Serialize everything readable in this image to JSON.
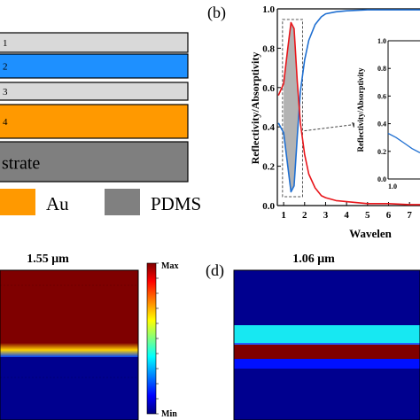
{
  "panel_a": {
    "layers": [
      {
        "label": "1",
        "color": "#d9d9d9"
      },
      {
        "label": "2",
        "color": "#1e90ff"
      },
      {
        "label": "3",
        "color": "#d9d9d9"
      },
      {
        "label": "4",
        "color": "#ff9900"
      },
      {
        "label": "strate",
        "color": "#7f7f7f"
      }
    ],
    "legend": [
      {
        "label": "Au",
        "color": "#ff9900"
      },
      {
        "label": "PDMS",
        "color": "#808080"
      }
    ]
  },
  "panel_b": {
    "letter": "(b)",
    "ylabel": "Reflectivity/Absorptivity",
    "xlabel": "Wavelen",
    "inset_ylabel": "Reflectivity/Absorptivity"
  },
  "panel_c": {
    "title": "1.55 μm",
    "colorbar_max": "Max",
    "colorbar_min": "Min"
  },
  "panel_d": {
    "letter": "(d)",
    "title": "1.06 μm"
  },
  "chart_data": {
    "type": "line",
    "xlabel": "Wavelen",
    "ylabel": "Reflectivity/Absorptivity",
    "xlim": [
      0.7,
      7.5
    ],
    "ylim": [
      0,
      1.0
    ],
    "xticks": [
      "1",
      "2",
      "3",
      "4",
      "5",
      "6",
      "7"
    ],
    "yticks": [
      "0.0",
      "0.2",
      "0.4",
      "0.6",
      "0.8",
      "1.0"
    ],
    "series": [
      {
        "color": "#1f6fd1",
        "x": [
          0.75,
          1.0,
          1.2,
          1.35,
          1.5,
          1.65,
          1.8,
          2.0,
          2.2,
          2.5,
          2.8,
          3.0,
          3.5,
          4.0,
          5.0,
          6.0,
          7.0,
          7.5
        ],
        "y": [
          0.42,
          0.37,
          0.2,
          0.07,
          0.1,
          0.35,
          0.58,
          0.74,
          0.84,
          0.92,
          0.96,
          0.975,
          0.985,
          0.99,
          0.995,
          0.995,
          0.995,
          0.995
        ]
      },
      {
        "color": "#e8161b",
        "x": [
          0.75,
          1.0,
          1.2,
          1.35,
          1.5,
          1.65,
          1.8,
          2.0,
          2.2,
          2.5,
          2.8,
          3.0,
          3.5,
          4.0,
          5.0,
          6.0,
          7.0,
          7.5
        ],
        "y": [
          0.56,
          0.62,
          0.8,
          0.93,
          0.9,
          0.63,
          0.42,
          0.26,
          0.16,
          0.09,
          0.05,
          0.04,
          0.025,
          0.02,
          0.01,
          0.01,
          0.005,
          0.005
        ]
      }
    ],
    "highlight_region_x": [
      1.2,
      1.65
    ],
    "inset": {
      "ylim": [
        0,
        1.0
      ],
      "yticks": [
        "0.0",
        "0.2",
        "0.4",
        "0.6",
        "0.8",
        "1.0"
      ],
      "xticks": [
        "1.0"
      ],
      "series_color": "#1f6fd1",
      "x": [
        0.9,
        1.0,
        1.1,
        1.2,
        1.3
      ],
      "y": [
        0.33,
        0.3,
        0.26,
        0.22,
        0.19
      ]
    }
  }
}
